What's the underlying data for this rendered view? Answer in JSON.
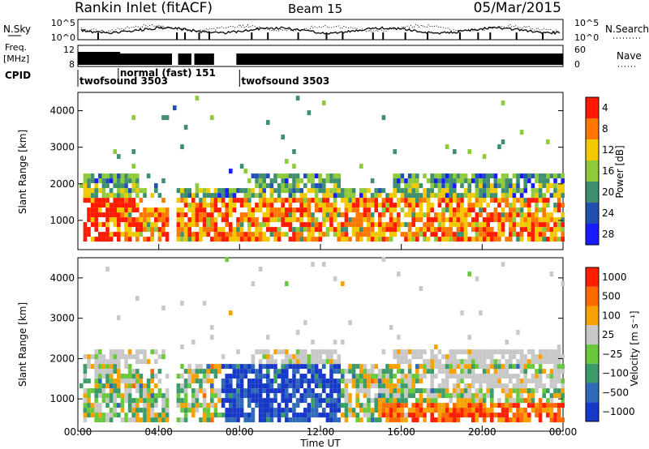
{
  "header": {
    "title": "Rankin Inlet (fitACF)",
    "beam": "Beam 15",
    "date": "05/Mar/2015"
  },
  "strips": {
    "nsky_label": "N.Sky",
    "nsky_ticks": [
      "10^5",
      "10^0"
    ],
    "nsearch_label": "N.Search",
    "freq_label_top": "Freq.",
    "freq_label_bottom": "[MHz]",
    "freq_ticks": [
      "12",
      "8"
    ],
    "nave_label": "Nave",
    "nave_ticks": [
      "60",
      "0"
    ],
    "cpid_label": "CPID",
    "cpid_modes": [
      {
        "label": "twofsound 3503",
        "start_hour": 0.0
      },
      {
        "label": "normal (fast) 151",
        "start_hour": 2.0
      },
      {
        "label": "twofsound 3503",
        "start_hour": 8.0
      }
    ]
  },
  "chart_data": [
    {
      "type": "heatmap",
      "name": "power",
      "ylabel": "Slant Range [km]",
      "y_ticks": [
        "1000",
        "2000",
        "3000",
        "4000"
      ],
      "xlim_hours": [
        0,
        24
      ],
      "ylim_km": [
        200,
        4500
      ],
      "colorbar": {
        "label": "Power [dB]",
        "ticks": [
          "4",
          "8",
          "12",
          "16",
          "20",
          "24",
          "28"
        ],
        "colors": [
          "#1a1aff",
          "#2050b0",
          "#3f8f6e",
          "#8fca3a",
          "#f2c800",
          "#ff7700",
          "#ff1a00"
        ]
      }
    },
    {
      "type": "heatmap",
      "name": "velocity",
      "ylabel": "Slant Range [km]",
      "xlabel": "Time UT",
      "x_ticks": [
        "00:00",
        "04:00",
        "08:00",
        "12:00",
        "16:00",
        "20:00",
        "00:00"
      ],
      "y_ticks": [
        "1000",
        "2000",
        "3000",
        "4000"
      ],
      "xlim_hours": [
        0,
        24
      ],
      "ylim_km": [
        200,
        4500
      ],
      "colorbar": {
        "label": "Velocity [m s⁻¹]",
        "ticks": [
          "1000",
          "500",
          "100",
          "25",
          "−25",
          "−100",
          "−500",
          "−1000"
        ],
        "colors": [
          "#1838c8",
          "#2f6ab8",
          "#3b9c6a",
          "#6ac83c",
          "#c8c8c8",
          "#f7a200",
          "#ff6a00",
          "#ff1e00"
        ]
      }
    }
  ]
}
